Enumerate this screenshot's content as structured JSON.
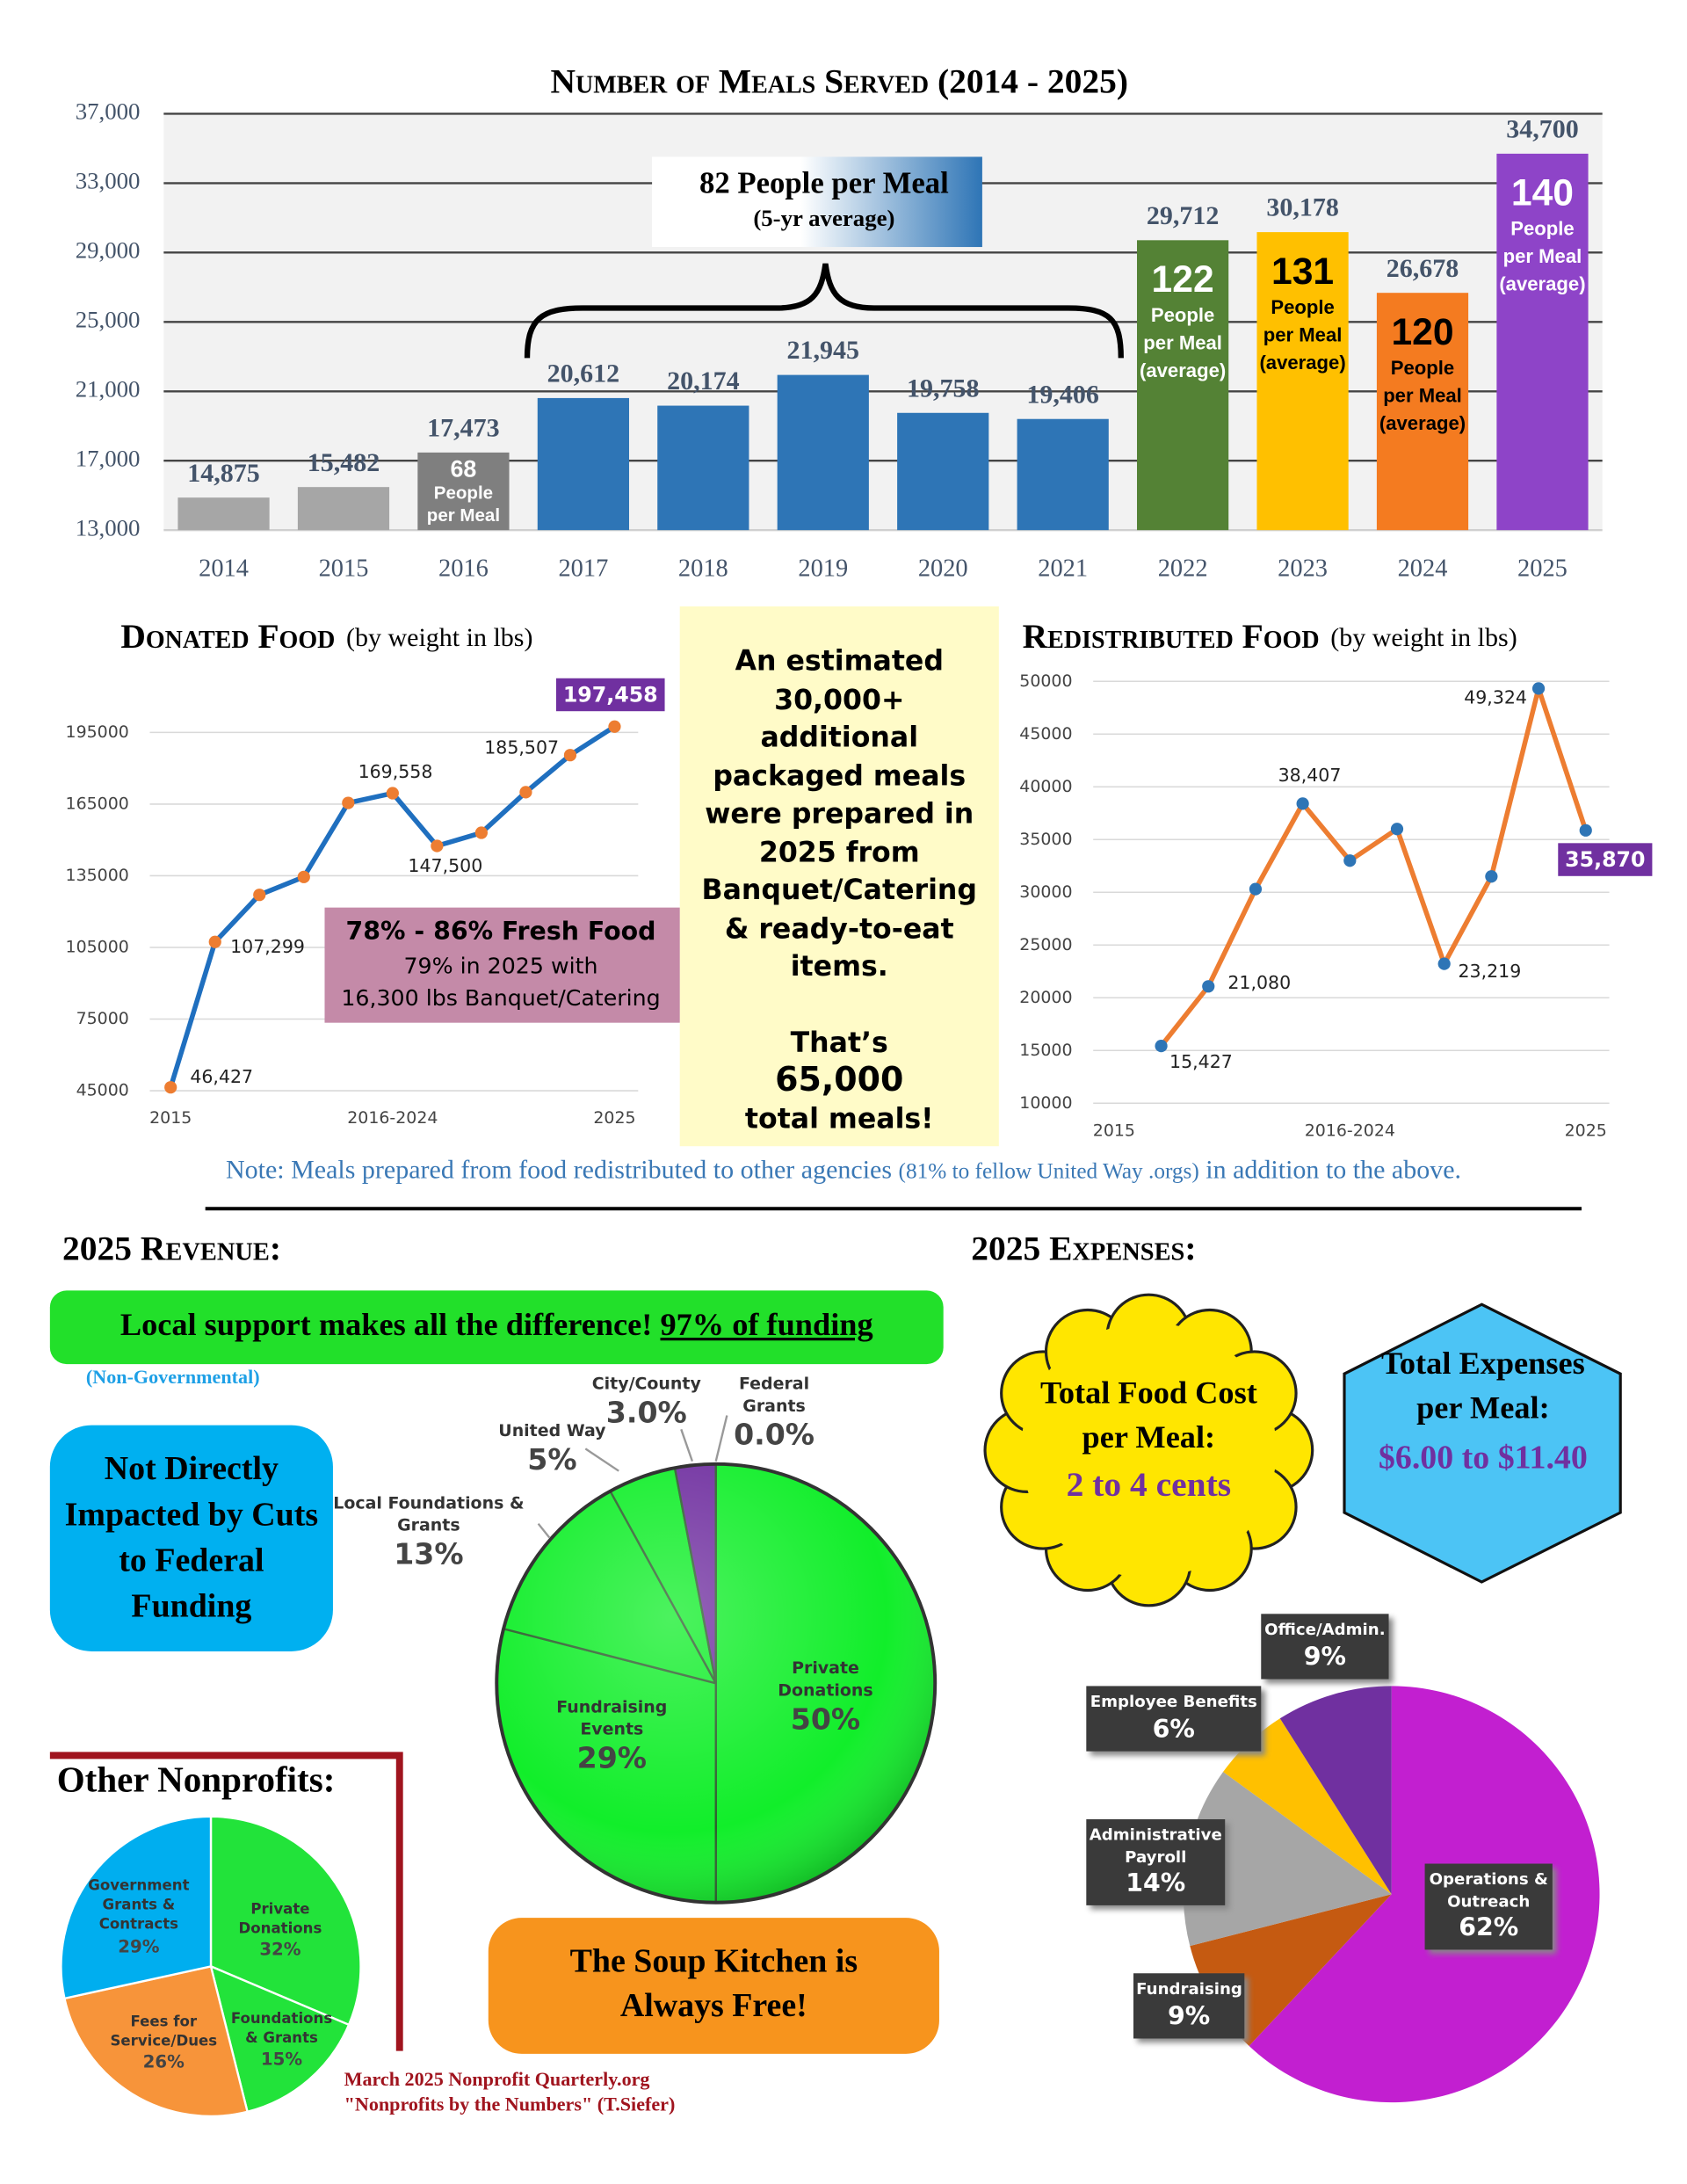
{
  "chart_data": [
    {
      "type": "bar",
      "title": "Number of Meals Served (2014 - 2025)",
      "categories": [
        "2014",
        "2015",
        "2016",
        "2017",
        "2018",
        "2019",
        "2020",
        "2021",
        "2022",
        "2023",
        "2024",
        "2025"
      ],
      "values": [
        14875,
        15482,
        17473,
        20612,
        20174,
        21945,
        19758,
        19406,
        29712,
        30178,
        26678,
        34700
      ],
      "value_labels": [
        "14,875",
        "15,482",
        "17,473",
        "20,612",
        "20,174",
        "21,945",
        "19,758",
        "19,406",
        "29,712",
        "30,178",
        "26,678",
        "34,700"
      ],
      "colors": [
        "#a6a6a6",
        "#a6a6a6",
        "#7f7f7f",
        "#2e75b6",
        "#2e75b6",
        "#2e75b6",
        "#2e75b6",
        "#2e75b6",
        "#548235",
        "#ffc000",
        "#f47b20",
        "#8e44c8"
      ],
      "ylim": [
        13000,
        37000
      ],
      "yticks": [
        {
          "value": 13000,
          "label": "13,000"
        },
        {
          "value": 17000,
          "label": "17,000"
        },
        {
          "value": 21000,
          "label": "21,000"
        },
        {
          "value": 25000,
          "label": "25,000"
        },
        {
          "value": 29000,
          "label": "29,000"
        },
        {
          "value": 33000,
          "label": "33,000"
        },
        {
          "value": 37000,
          "label": "37,000"
        }
      ],
      "grid": true,
      "inner_labels": [
        null,
        null,
        {
          "number": 68,
          "lines": [
            "People",
            "per Meal"
          ],
          "color": "#ffffff"
        },
        null,
        null,
        null,
        null,
        null,
        {
          "number": 122,
          "lines": [
            "People",
            "per Meal",
            "(average)"
          ],
          "color": "#ffffff"
        },
        {
          "number": 131,
          "lines": [
            "People",
            "per Meal",
            "(average)"
          ],
          "color": "#000000"
        },
        {
          "number": 120,
          "lines": [
            "People",
            "per Meal",
            "(average)"
          ],
          "color": "#000000"
        },
        {
          "number": 140,
          "lines": [
            "People",
            "per Meal",
            "(average)"
          ],
          "color": "#ffffff"
        }
      ],
      "annotation": {
        "title": "82 People per Meal",
        "subtitle": "(5-yr average)"
      }
    },
    {
      "type": "line",
      "title": "Donated Food",
      "subtitle": "(by weight in lbs)",
      "categories": [
        "2015",
        null,
        null,
        null,
        null,
        "2016-2024",
        null,
        null,
        null,
        null,
        "2025"
      ],
      "values": [
        46427,
        107299,
        127000,
        134500,
        165500,
        169558,
        147500,
        153000,
        170000,
        185507,
        197458
      ],
      "value_labels": [
        "46,427",
        "107,299",
        null,
        null,
        null,
        "169,558",
        "147,500",
        null,
        null,
        "185,507",
        "197,458"
      ],
      "color": "#1f6fbf",
      "marker_color": "#ed7d31",
      "highlight_color": "#7030a0",
      "ylim": [
        45000,
        210000
      ],
      "yticks": [
        45000,
        75000,
        105000,
        135000,
        165000,
        195000
      ],
      "grid": true,
      "annotation": {
        "title": "78% - 86% Fresh Food",
        "lines": [
          "79% in 2025 with",
          "16,300 lbs Banquet/Catering"
        ]
      }
    },
    {
      "type": "line",
      "title": "Redistributed Food",
      "subtitle": "(by weight in lbs)",
      "categories": [
        "2015",
        null,
        null,
        null,
        null,
        "2016-2024",
        null,
        null,
        null,
        null,
        "2025"
      ],
      "values": [
        null,
        15427,
        21080,
        30300,
        38407,
        33000,
        36000,
        23219,
        31500,
        49324,
        35870
      ],
      "value_labels": [
        null,
        "15,427",
        "21,080",
        null,
        "38,407",
        null,
        null,
        "23,219",
        null,
        "49,324",
        "35,870"
      ],
      "color": "#ed7d31",
      "marker_color": "#2e75b6",
      "highlight_color": "#7030a0",
      "ylim": [
        10000,
        50000
      ],
      "yticks": [
        10000,
        15000,
        20000,
        25000,
        30000,
        35000,
        40000,
        45000,
        50000
      ],
      "grid": true
    },
    {
      "type": "pie",
      "title": "2025 Revenue:",
      "categories": [
        "Private Donations",
        "Fundraising Events",
        "Local Foundations & Grants",
        "United Way",
        "City/County",
        "Federal Grants"
      ],
      "values": [
        50,
        29,
        13,
        5,
        3.0,
        0.0
      ],
      "value_labels": [
        "50%",
        "29%",
        "13%",
        "5%",
        "3.0%",
        "0.0%"
      ],
      "colors": [
        "#11ee2a",
        "#11ee2a",
        "#11ee2a",
        "#11ee2a",
        "#7030a0",
        "#11ee2a"
      ]
    },
    {
      "type": "pie",
      "title": "2025 Expenses:",
      "categories": [
        "Operations & Outreach",
        "Fundraising",
        "Administrative Payroll",
        "Employee Benefits",
        "Office/Admin."
      ],
      "values": [
        62,
        9,
        14,
        6,
        9
      ],
      "value_labels": [
        "62%",
        "9%",
        "14%",
        "6%",
        "9%"
      ],
      "colors": [
        "#c21fd0",
        "#c55a11",
        "#a6a6a6",
        "#ffc000",
        "#7030a0"
      ]
    },
    {
      "type": "pie",
      "title": "Other Nonprofits:",
      "categories": [
        "Private Donations",
        "Foundations & Grants",
        "Fees for Service/Dues",
        "Government Grants & Contracts"
      ],
      "values": [
        32,
        15,
        26,
        29
      ],
      "value_labels": [
        "32%",
        "15%",
        "26%",
        "29%"
      ],
      "colors": [
        "#22e33a",
        "#22e33a",
        "#f7943a",
        "#00aeef"
      ]
    }
  ],
  "summary_box": {
    "text": "An estimated 30,000+ additional packaged meals were prepared in 2025 from Banquet/Catering & ready-to-eat items.",
    "lead": "That’s",
    "number": "65,000",
    "tail": "total meals!"
  },
  "note": {
    "text": "Note: Meals prepared from food redistributed to other agencies",
    "detail": "(81% to fellow United Way .orgs)",
    "tail": "in addition to the above."
  },
  "revenue_banner": {
    "text": "Local support makes all the difference!",
    "emphasis": "97% of funding",
    "note": "(Non-Governmental)"
  },
  "federal_callout": "Not Directly Impacted by Cuts to Federal Funding",
  "free_callout": "The Soup Kitchen is Always Free!",
  "food_cost": {
    "label": "Total Food Cost per Meal:",
    "value": "2 to 4 cents"
  },
  "expense_per_meal": {
    "label": "Total Expenses per Meal:",
    "value": "$6.00 to $11.40"
  },
  "source": [
    "March 2025 Nonprofit Quarterly.org",
    "\"Nonprofits by the Numbers\" (T.Siefer)"
  ]
}
